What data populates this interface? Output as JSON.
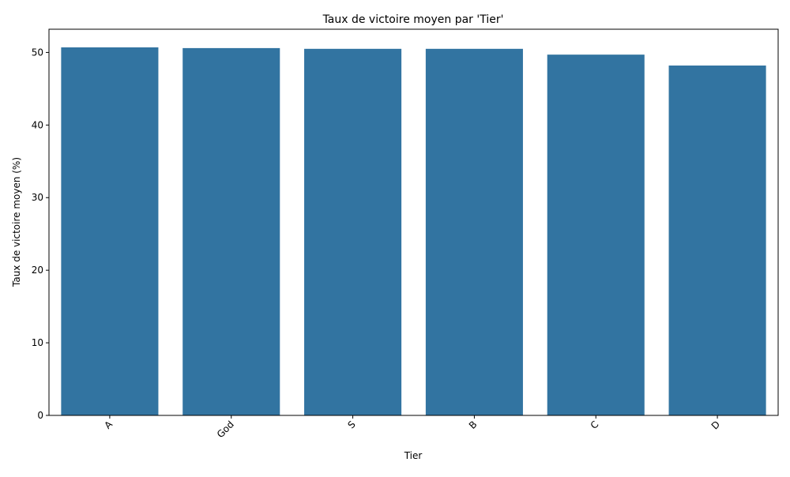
{
  "chart_data": {
    "type": "bar",
    "title": "Taux de victoire moyen par 'Tier'",
    "xlabel": "Tier",
    "ylabel": "Taux de victoire moyen (%)",
    "categories": [
      "A",
      "God",
      "S",
      "B",
      "C",
      "D"
    ],
    "values": [
      50.7,
      50.6,
      50.5,
      50.5,
      49.7,
      48.2
    ],
    "ylim": [
      0,
      53.2
    ],
    "yticks": [
      0,
      10,
      20,
      30,
      40,
      50
    ],
    "xtick_rotation": 45,
    "grid": false,
    "legend": "none",
    "bar_color": "#3274a1"
  }
}
